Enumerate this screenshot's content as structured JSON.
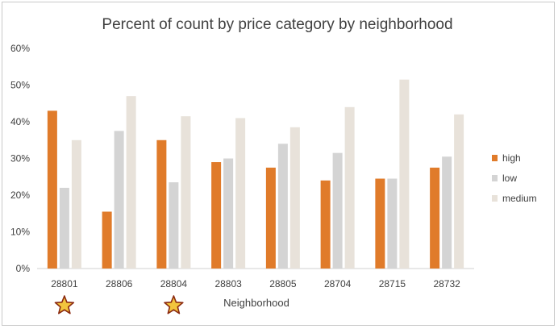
{
  "chart_data": {
    "type": "bar",
    "title": "Percent of count by price category by neighborhood",
    "xlabel": "Neighborhood",
    "ylabel": "",
    "categories": [
      "28801",
      "28806",
      "28804",
      "28803",
      "28805",
      "28704",
      "28715",
      "28732"
    ],
    "series": [
      {
        "name": "high",
        "color": "#E07B2A",
        "values": [
          43,
          15.5,
          35,
          29,
          27.5,
          24,
          24.5,
          27.5
        ]
      },
      {
        "name": "low",
        "color": "#D4D4D4",
        "values": [
          22,
          37.5,
          23.5,
          30,
          34,
          31.5,
          24.5,
          30.5
        ]
      },
      {
        "name": "medium",
        "color": "#E8E2DA",
        "values": [
          35,
          47,
          41.5,
          41,
          38.5,
          44,
          51.5,
          42
        ]
      }
    ],
    "ylim": [
      0,
      60
    ],
    "yticks": [
      "0%",
      "10%",
      "20%",
      "30%",
      "40%",
      "50%",
      "60%"
    ],
    "legend_position": "right",
    "grid": false,
    "markers": [
      {
        "category": "28801",
        "icon": "star-icon"
      },
      {
        "category": "28804",
        "icon": "star-icon"
      }
    ]
  }
}
